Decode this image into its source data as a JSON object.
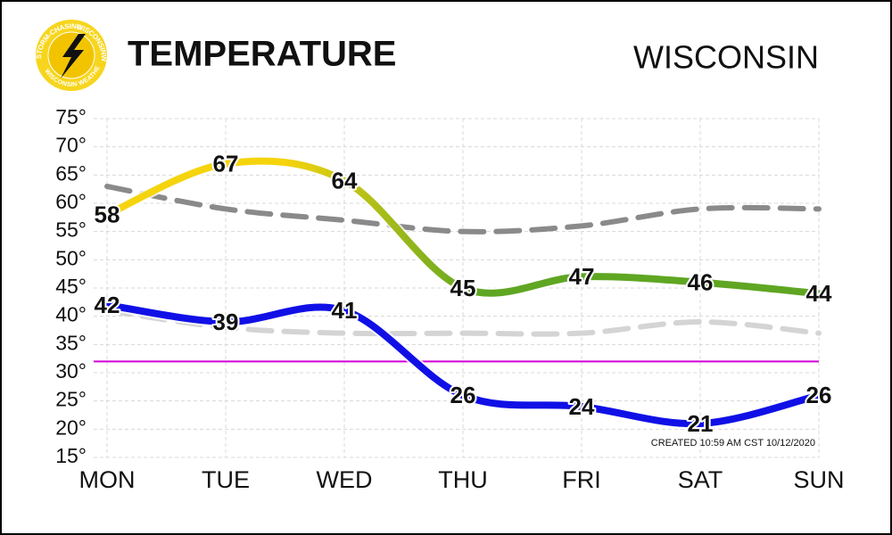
{
  "chart_data": {
    "type": "line",
    "title": "TEMPERATURE",
    "subtitle": "WISCONSIN",
    "annotation": "CREATED 10:59 AM CST 10/12/2020",
    "logo_texts": [
      "STORM-CHASING",
      "WISCONSINWX.COM",
      "WISCONSIN WEATHER"
    ],
    "categories": [
      "MON",
      "TUE",
      "WED",
      "THU",
      "FRI",
      "SAT",
      "SUN"
    ],
    "series": [
      {
        "color": "#8a8a8a",
        "dash": true,
        "values": [
          63,
          59,
          57,
          55,
          56,
          59,
          59
        ]
      },
      {
        "color": "#d4d4d4",
        "dash": true,
        "values": [
          41,
          38,
          37,
          37,
          37,
          39,
          37
        ]
      },
      {
        "color": "#f5d40e",
        "color_end": "#5fa622",
        "labels": true,
        "values": [
          58,
          67,
          64,
          45,
          47,
          46,
          44
        ]
      },
      {
        "color": "#1010e6",
        "labels": true,
        "values": [
          42,
          39,
          41,
          26,
          24,
          21,
          26
        ]
      }
    ],
    "reference_lines": [
      {
        "value": 32,
        "color": "#d000d8"
      }
    ],
    "ylim": [
      15,
      75
    ],
    "yticks": [
      {
        "value": 15,
        "label": "15°"
      },
      {
        "value": 20,
        "label": "20°"
      },
      {
        "value": 25,
        "label": "25°"
      },
      {
        "value": 30,
        "label": "30°"
      },
      {
        "value": 35,
        "label": "35°"
      },
      {
        "value": 40,
        "label": "40°"
      },
      {
        "value": 45,
        "label": "45°"
      },
      {
        "value": 50,
        "label": "50°"
      },
      {
        "value": 55,
        "label": "55°"
      },
      {
        "value": 60,
        "label": "60°"
      },
      {
        "value": 65,
        "label": "65°"
      },
      {
        "value": 70,
        "label": "70°"
      },
      {
        "value": 75,
        "label": "75°"
      }
    ],
    "grid": true
  }
}
